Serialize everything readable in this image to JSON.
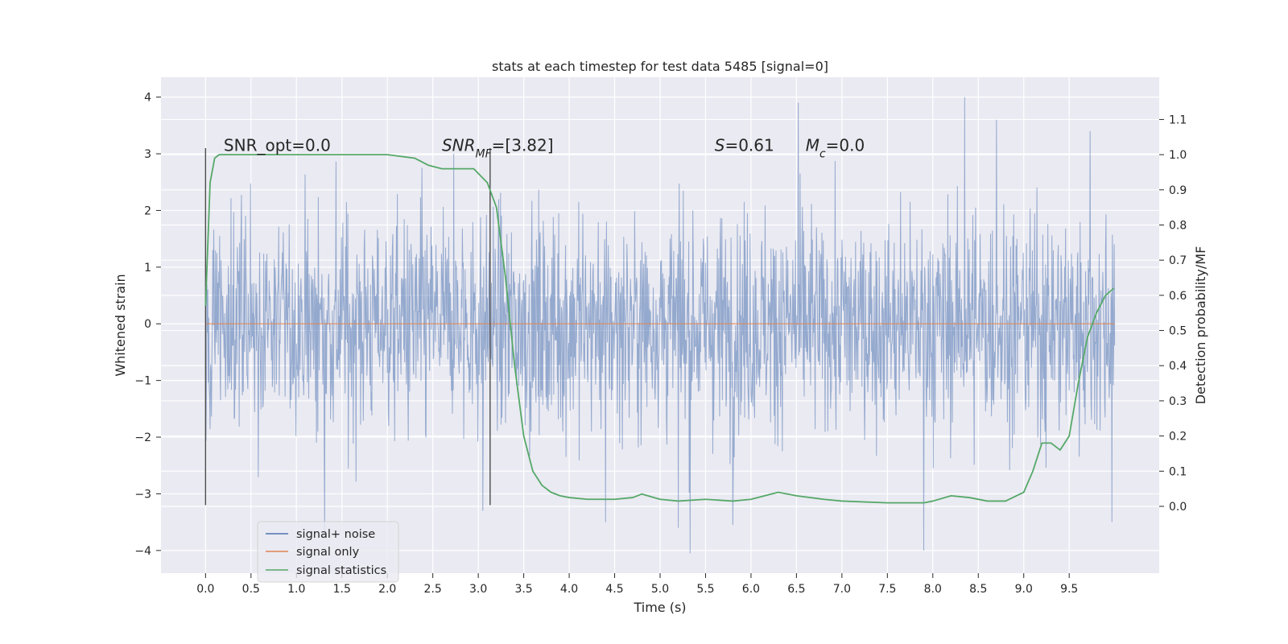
{
  "chart_data": {
    "type": "line",
    "title": "stats at each timestep for test data 5485 [signal=0]",
    "xlabel": "Time (s)",
    "ylabel": "Whitened strain",
    "ylabel_right": "Detection probability/MF",
    "xlim": [
      -0.49,
      10.49
    ],
    "ylim": [
      -4.4,
      4.35
    ],
    "ylim_right": [
      -0.19,
      1.22
    ],
    "xticks": [
      0.0,
      0.5,
      1.0,
      1.5,
      2.0,
      2.5,
      3.0,
      3.5,
      4.0,
      4.5,
      5.0,
      5.5,
      6.0,
      6.5,
      7.0,
      7.5,
      8.0,
      8.5,
      9.0,
      9.5
    ],
    "yticks": [
      -4,
      -3,
      -2,
      -1,
      0,
      1,
      2,
      3,
      4
    ],
    "yticks_right": [
      0.0,
      0.1,
      0.2,
      0.3,
      0.4,
      0.5,
      0.6,
      0.7,
      0.8,
      0.9,
      1.0,
      1.1
    ],
    "grid": true,
    "legend_position": "lower-left",
    "annotations": [
      {
        "text": "SNR_opt=0.0",
        "x": 0.2,
        "y": 3.05
      },
      {
        "text": "SNR_MF=[3.82]",
        "x": 2.6,
        "y": 3.05
      },
      {
        "text": "S=0.61",
        "x": 5.6,
        "y": 3.05
      },
      {
        "text": "M_c=0.0",
        "x": 6.6,
        "y": 3.05
      }
    ],
    "vlines": [
      {
        "x": 0.0,
        "ymin": -3.2,
        "ymax": 3.1
      },
      {
        "x": 3.13,
        "ymin": -3.2,
        "ymax": 3.1
      }
    ],
    "series": [
      {
        "name": "signal+ noise",
        "axis": "left",
        "color": "#4c72b0",
        "t_range": [
          0.0,
          10.0
        ],
        "envelope": "noise, mostly within ±2.5, peaks near ±3.9",
        "peaks": [
          {
            "x": 1.31,
            "y": -3.8
          },
          {
            "x": 2.73,
            "y": 3.0
          },
          {
            "x": 3.05,
            "y": -3.3
          },
          {
            "x": 4.4,
            "y": -3.5
          },
          {
            "x": 5.2,
            "y": -3.6
          },
          {
            "x": 5.33,
            "y": -4.05
          },
          {
            "x": 5.8,
            "y": -3.55
          },
          {
            "x": 6.52,
            "y": 3.9
          },
          {
            "x": 7.9,
            "y": -4.0
          },
          {
            "x": 8.35,
            "y": 4.0
          },
          {
            "x": 8.7,
            "y": 3.6
          },
          {
            "x": 9.73,
            "y": 3.4
          },
          {
            "x": 9.97,
            "y": -3.5
          }
        ]
      },
      {
        "name": "signal only",
        "axis": "left",
        "color": "#dd8452",
        "x": [
          0.0,
          10.0
        ],
        "values": [
          0.0,
          0.0
        ]
      },
      {
        "name": "signal statistics",
        "axis": "right",
        "color": "#55a868",
        "x": [
          0.0,
          0.05,
          0.1,
          0.15,
          0.2,
          0.3,
          0.5,
          1.0,
          1.5,
          2.0,
          2.3,
          2.45,
          2.6,
          2.75,
          2.95,
          3.1,
          3.2,
          3.3,
          3.4,
          3.5,
          3.6,
          3.7,
          3.8,
          3.9,
          4.0,
          4.2,
          4.5,
          4.7,
          4.8,
          5.0,
          5.2,
          5.5,
          5.8,
          6.0,
          6.3,
          6.5,
          6.8,
          7.0,
          7.5,
          7.9,
          8.0,
          8.2,
          8.4,
          8.6,
          8.8,
          9.0,
          9.1,
          9.2,
          9.3,
          9.4,
          9.5,
          9.6,
          9.7,
          9.8,
          9.9,
          9.99
        ],
        "values": [
          0.57,
          0.92,
          0.99,
          1.0,
          1.0,
          1.0,
          1.0,
          1.0,
          1.0,
          1.0,
          0.99,
          0.97,
          0.96,
          0.96,
          0.96,
          0.92,
          0.85,
          0.65,
          0.4,
          0.2,
          0.1,
          0.06,
          0.04,
          0.03,
          0.025,
          0.02,
          0.02,
          0.025,
          0.035,
          0.02,
          0.015,
          0.02,
          0.015,
          0.02,
          0.04,
          0.03,
          0.02,
          0.015,
          0.01,
          0.01,
          0.015,
          0.03,
          0.025,
          0.015,
          0.015,
          0.04,
          0.1,
          0.18,
          0.18,
          0.16,
          0.2,
          0.35,
          0.48,
          0.55,
          0.6,
          0.62
        ]
      }
    ]
  }
}
